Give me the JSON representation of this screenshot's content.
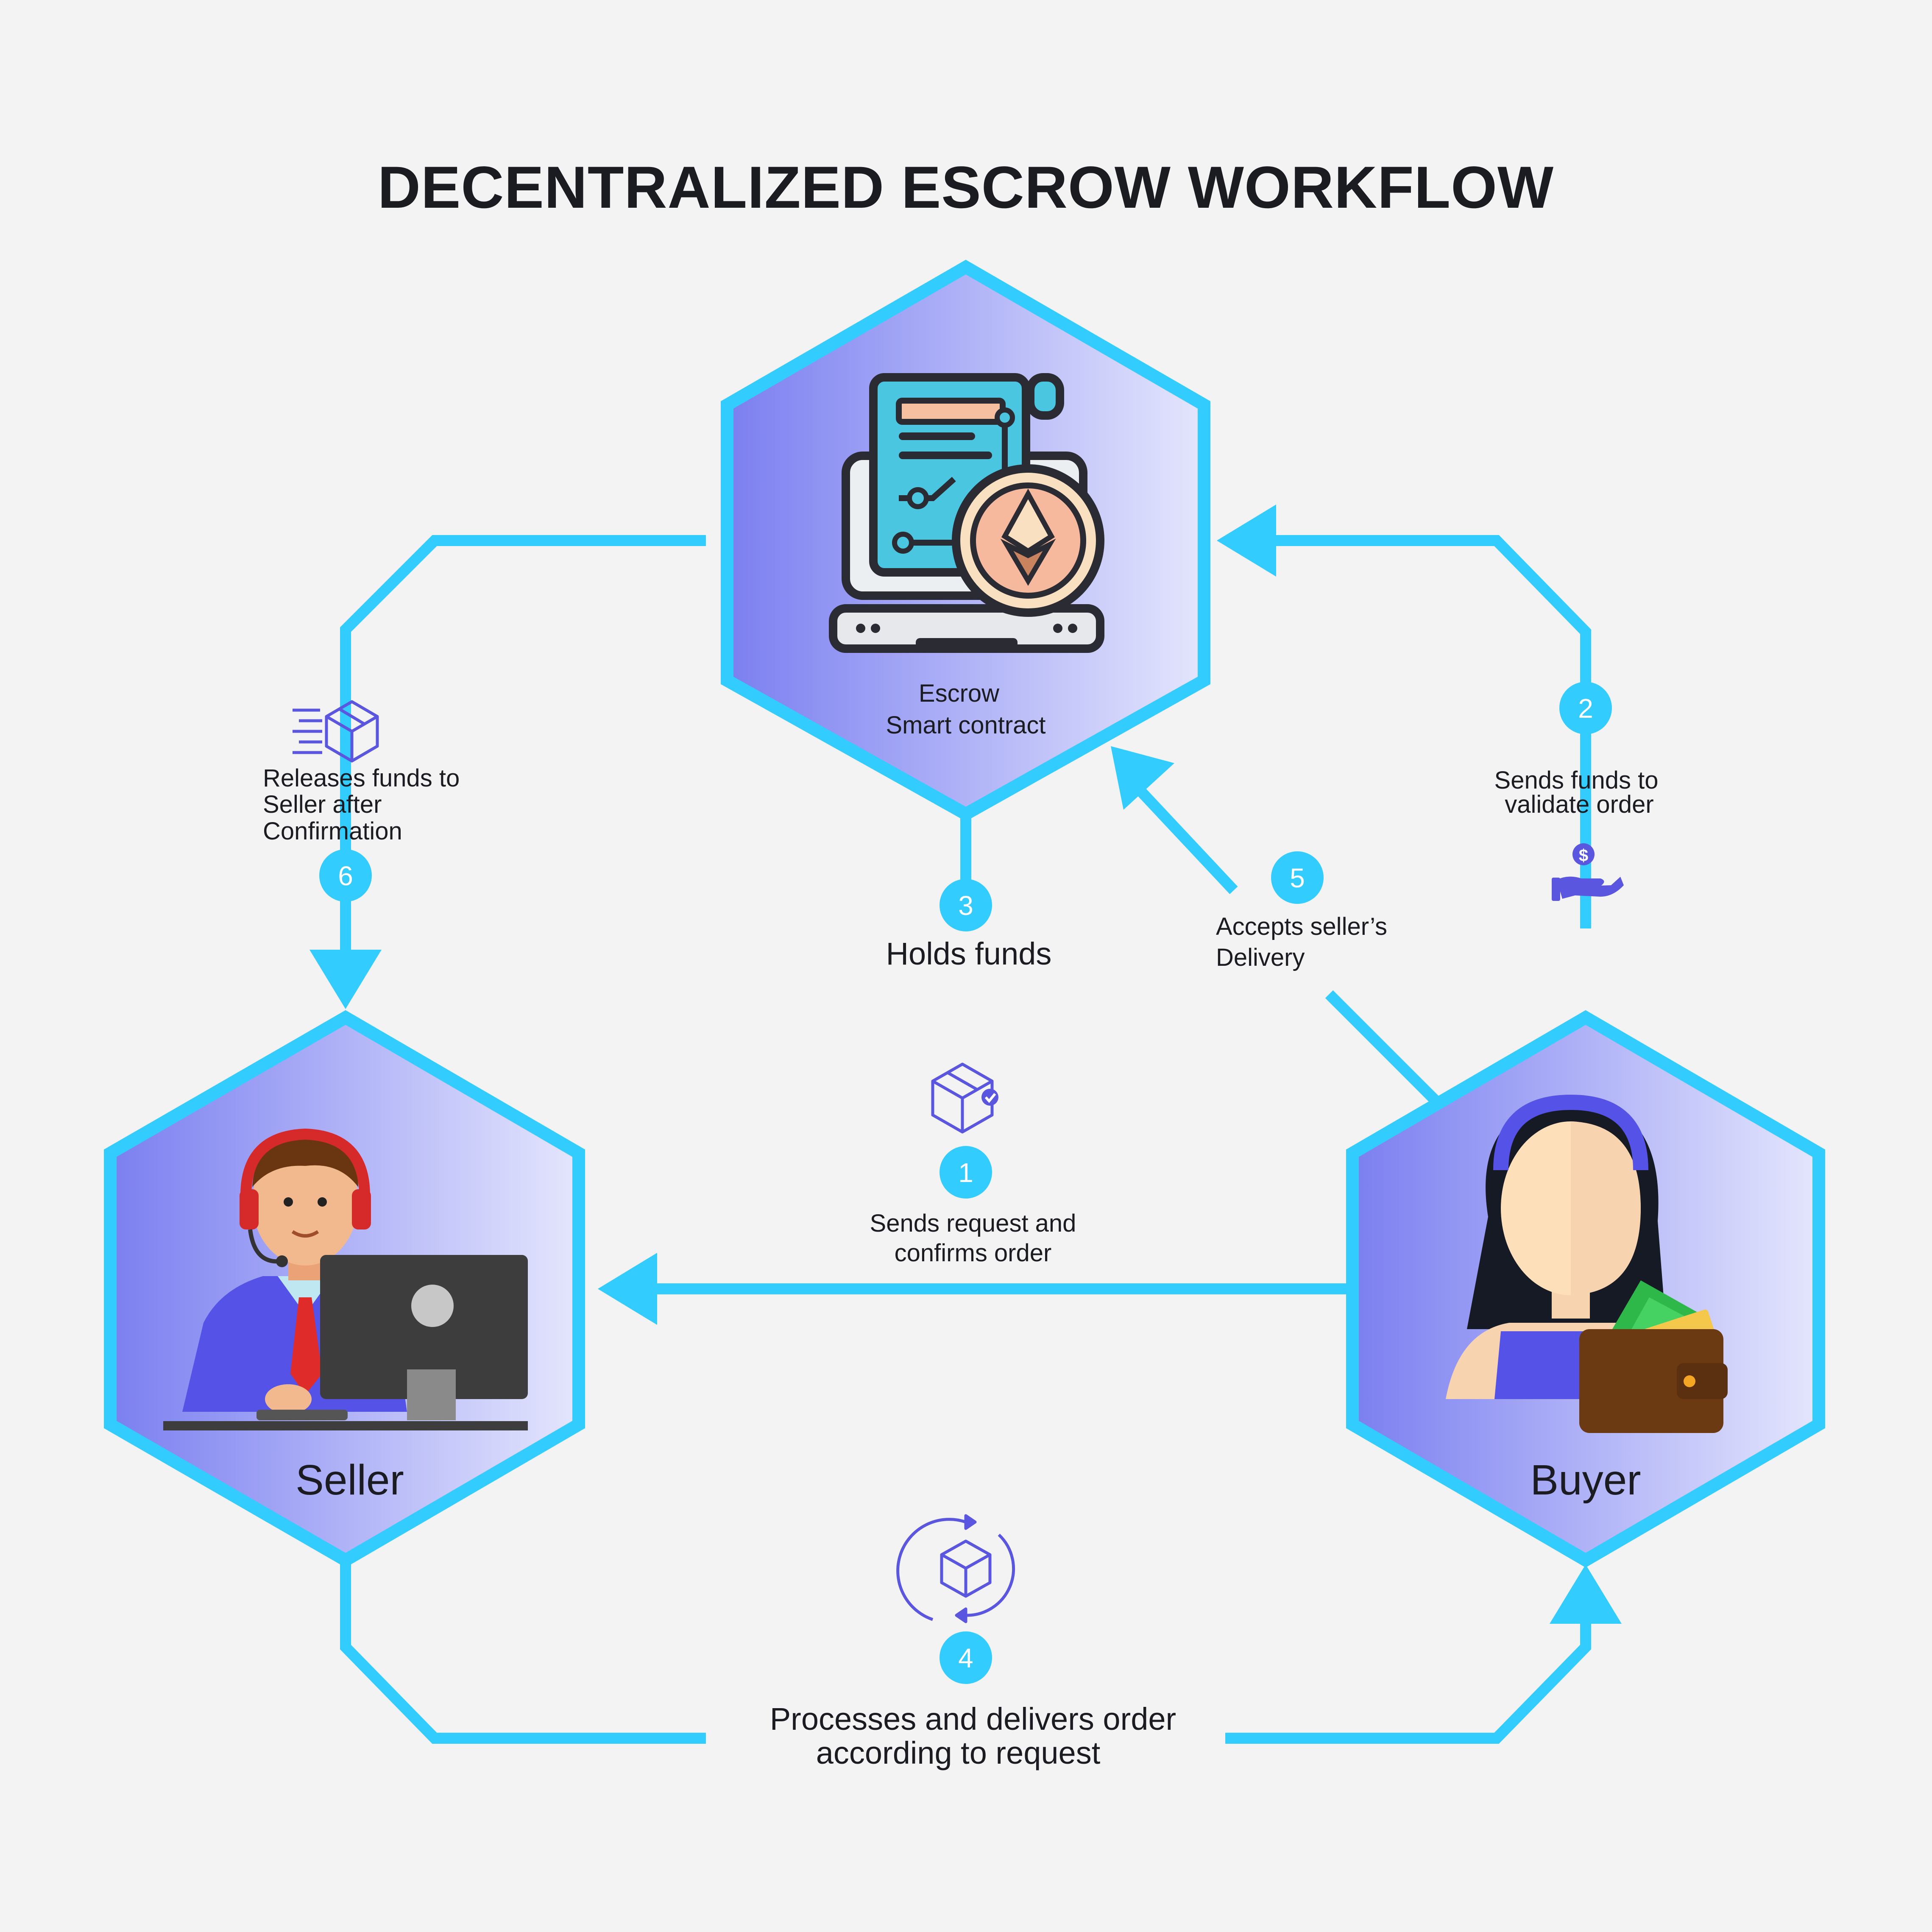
{
  "title": "DECENTRALIZED ESCROW WORKFLOW",
  "nodes": {
    "escrow": {
      "line1": "Escrow",
      "line2": "Smart contract"
    },
    "seller": {
      "label": "Seller"
    },
    "buyer": {
      "label": "Buyer"
    }
  },
  "steps": [
    {
      "num": "1",
      "lines": [
        "Sends request and",
        "confirms order"
      ]
    },
    {
      "num": "2",
      "lines": [
        "Sends funds to",
        "validate order"
      ]
    },
    {
      "num": "3",
      "lines": [
        "Holds funds"
      ]
    },
    {
      "num": "4",
      "lines": [
        "Processes and delivers order",
        "according to request"
      ]
    },
    {
      "num": "5",
      "lines": [
        "Accepts seller’s",
        "Delivery"
      ]
    },
    {
      "num": "6",
      "lines": [
        "Releases funds to",
        "Seller after",
        "Confirmation"
      ]
    }
  ],
  "colors": {
    "accent": "#33ccff",
    "hex_left": "#7b7ff0",
    "hex_right": "#e4e6fd",
    "icon": "#5a56e0",
    "background": "#f3f3f3"
  },
  "icons": {
    "step6": "fast-box-icon",
    "step2": "hand-dollar-icon",
    "step1": "box-check-icon",
    "step4": "box-cycle-icon",
    "escrow": "smart-contract-ethereum-icon",
    "seller": "seller-at-computer-icon",
    "buyer": "buyer-with-wallet-icon"
  }
}
